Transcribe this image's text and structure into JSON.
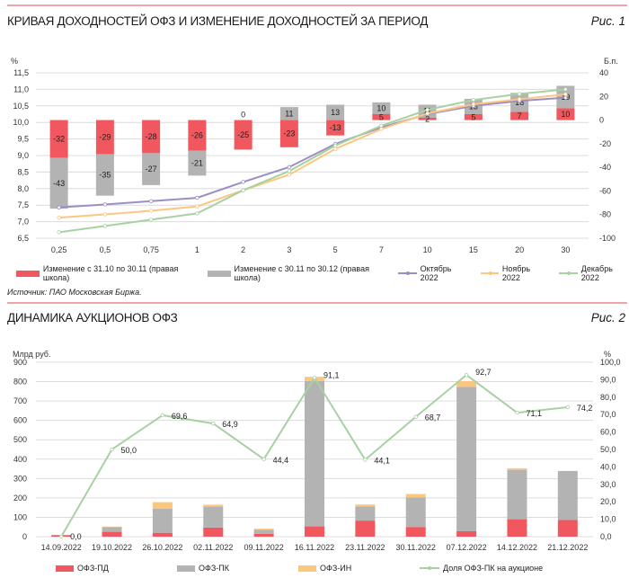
{
  "figure1": {
    "title": "КРИВАЯ ДОХОДНОСТЕЙ ОФЗ И ИЗМЕНЕНИЕ ДОХОДНОСТЕЙ ЗА ПЕРИОД",
    "fig_label": "Рис. 1",
    "source": "Источник: ПАО Московская Биржа."
  },
  "figure2": {
    "title": "ДИНАМИКА АУКЦИОНОВ ОФЗ",
    "fig_label": "Рис. 2"
  },
  "chart_data": [
    {
      "type": "bar",
      "title": "КРИВАЯ ДОХОДНОСТЕЙ ОФЗ И ИЗМЕНЕНИЕ ДОХОДНОСТЕЙ ЗА ПЕРИОД",
      "ylabel": "%",
      "y2label": "Б.п.",
      "ylim": [
        6.5,
        11.5
      ],
      "yticks": [
        "6,5",
        "7,0",
        "7,5",
        "8,0",
        "8,5",
        "9,0",
        "9,5",
        "10,0",
        "10,5",
        "11,0",
        "11,5"
      ],
      "y2lim": [
        -100,
        40
      ],
      "y2ticks": [
        "-100",
        "-80",
        "-60",
        "-40",
        "-20",
        "0",
        "20",
        "40"
      ],
      "grid": true,
      "legend_position": "bottom",
      "categories": [
        "0,25",
        "0,5",
        "0,75",
        "1",
        "2",
        "3",
        "5",
        "7",
        "10",
        "15",
        "20",
        "30"
      ],
      "bar_series": [
        {
          "name": "Изменение с 31.10 по 30.11 (правая школа)",
          "color": "#f0575e",
          "axis": "right",
          "values": [
            -32,
            -29,
            -28,
            -26,
            -25,
            -23,
            -13,
            5,
            2,
            5,
            7,
            10
          ]
        },
        {
          "name": "Изменение с 30.11 по 30.12 (правая школа)",
          "color": "#b3b3b3",
          "axis": "right",
          "values": [
            -43,
            -35,
            -27,
            -21,
            0,
            11,
            13,
            10,
            11,
            13,
            16,
            19
          ]
        }
      ],
      "line_series": [
        {
          "name": "Октябрь 2022",
          "color": "#9b8ec4",
          "axis": "left",
          "values": [
            7.43,
            7.52,
            7.62,
            7.72,
            8.2,
            8.65,
            9.35,
            9.85,
            10.25,
            10.5,
            10.65,
            10.75
          ]
        },
        {
          "name": "Ноябрь 2022",
          "color": "#fbc77f",
          "axis": "left",
          "values": [
            7.12,
            7.22,
            7.33,
            7.46,
            7.95,
            8.42,
            9.2,
            9.8,
            10.27,
            10.55,
            10.7,
            10.85
          ]
        },
        {
          "name": "Декабрь 2022",
          "color": "#a8d1a3",
          "axis": "left",
          "values": [
            6.68,
            6.87,
            7.06,
            7.25,
            7.95,
            8.53,
            9.3,
            9.9,
            10.38,
            10.68,
            10.86,
            11.0
          ]
        }
      ]
    },
    {
      "type": "bar",
      "title": "ДИНАМИКА АУКЦИОНОВ ОФЗ",
      "ylabel": "Млрд руб.",
      "y2label": "%",
      "ylim": [
        0,
        900
      ],
      "yticks": [
        "0",
        "100",
        "200",
        "300",
        "400",
        "500",
        "600",
        "700",
        "800",
        "900"
      ],
      "y2lim": [
        0,
        100
      ],
      "y2ticks": [
        "0,0",
        "10,0",
        "20,0",
        "30,0",
        "40,0",
        "50,0",
        "60,0",
        "70,0",
        "80,0",
        "90,0",
        "100,0"
      ],
      "grid": true,
      "legend_position": "bottom",
      "categories": [
        "14.09.2022",
        "19.10.2022",
        "26.10.2022",
        "02.11.2022",
        "09.11.2022",
        "16.11.2022",
        "23.11.2022",
        "30.11.2022",
        "07.12.2022",
        "14.12.2022",
        "21.12.2022"
      ],
      "bar_series": [
        {
          "name": "ОФЗ-ПД",
          "color": "#f0575e",
          "values": [
            8,
            25,
            20,
            47,
            15,
            53,
            83,
            50,
            28,
            90,
            86
          ]
        },
        {
          "name": "ОФЗ-ПК",
          "color": "#b3b3b3",
          "values": [
            0,
            24,
            125,
            108,
            20,
            750,
            73,
            153,
            745,
            255,
            253
          ]
        },
        {
          "name": "ОФЗ-ИН",
          "color": "#fbc77f",
          "values": [
            0,
            3,
            33,
            10,
            6,
            22,
            10,
            17,
            30,
            8,
            0
          ]
        }
      ],
      "line_series": [
        {
          "name": "Доля ОФЗ-ПК на аукционе",
          "color": "#a8d1a3",
          "axis": "right",
          "values": [
            0.0,
            50.0,
            69.6,
            64.9,
            44.4,
            91.1,
            44.1,
            68.7,
            92.7,
            71.1,
            74.2
          ],
          "labels": [
            "0,0",
            "50,0",
            "69,6",
            "64,9",
            "44,4",
            "91,1",
            "44,1",
            "68,7",
            "92,7",
            "71,1",
            "74,2"
          ]
        }
      ]
    }
  ]
}
